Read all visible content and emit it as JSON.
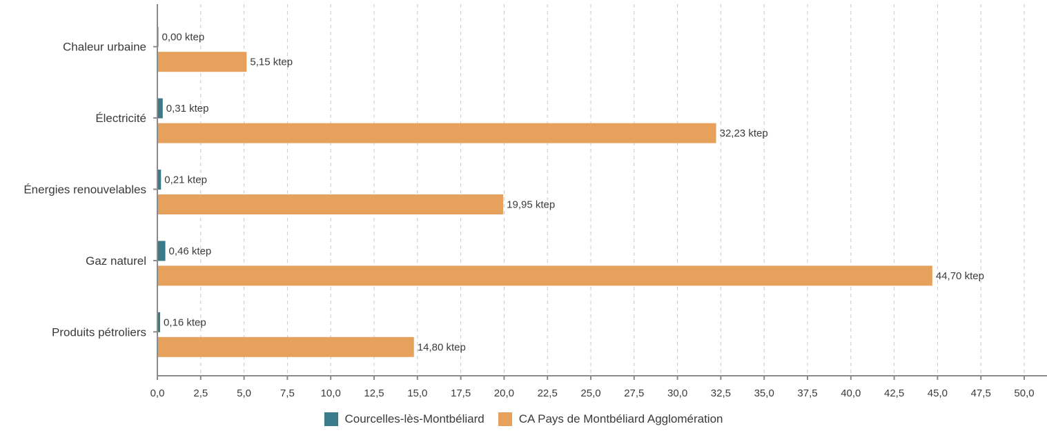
{
  "chart_data": {
    "type": "bar",
    "orientation": "horizontal",
    "categories": [
      "Chaleur urbaine",
      "Électricité",
      "Énergies renouvelables",
      "Gaz naturel",
      "Produits pétroliers"
    ],
    "series": [
      {
        "name": "Courcelles-lès-Montbéliard",
        "color": "#3b7a8a",
        "values": [
          0.0,
          0.31,
          0.21,
          0.46,
          0.16
        ],
        "labels": [
          "0,00 ktep",
          "0,31 ktep",
          "0,21 ktep",
          "0,46 ktep",
          "0,16 ktep"
        ]
      },
      {
        "name": "CA Pays de Montbéliard Agglomération",
        "color": "#e6a25c",
        "values": [
          5.15,
          32.23,
          19.95,
          44.7,
          14.8
        ],
        "labels": [
          "5,15 ktep",
          "32,23 ktep",
          "19,95 ktep",
          "44,70 ktep",
          "14,80 ktep"
        ]
      }
    ],
    "xlim": [
      0,
      50
    ],
    "xticks": [
      "0,0",
      "2,5",
      "5,0",
      "7,5",
      "10,0",
      "12,5",
      "15,0",
      "17,5",
      "20,0",
      "22,5",
      "25,0",
      "27,5",
      "30,0",
      "32,5",
      "35,0",
      "37,5",
      "40,0",
      "42,5",
      "45,0",
      "47,5",
      "50,0"
    ],
    "xtick_values": [
      0,
      2.5,
      5,
      7.5,
      10,
      12.5,
      15,
      17.5,
      20,
      22.5,
      25,
      27.5,
      30,
      32.5,
      35,
      37.5,
      40,
      42.5,
      45,
      47.5,
      50
    ],
    "grid": true,
    "grid_style": "dashed",
    "legend_position": "bottom",
    "axis_color": "#8a8a8a",
    "grid_color": "#c8c8c8"
  }
}
